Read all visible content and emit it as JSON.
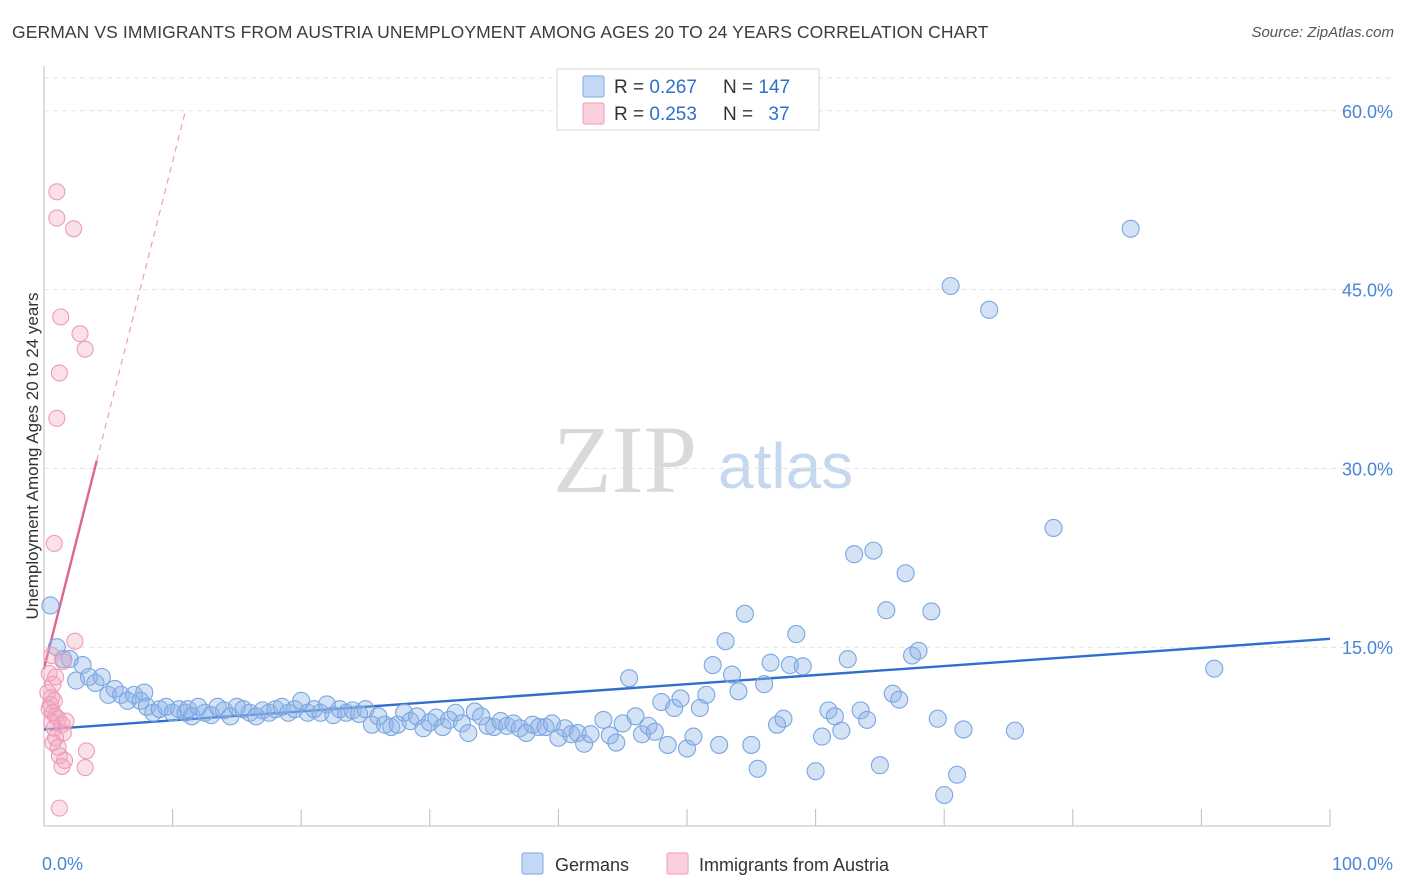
{
  "title": "GERMAN VS IMMIGRANTS FROM AUSTRIA UNEMPLOYMENT AMONG AGES 20 TO 24 YEARS CORRELATION CHART",
  "source": "Source: ZipAtlas.com",
  "watermark": {
    "zip": "ZIP",
    "atlas": "atlas"
  },
  "legend": {
    "rows": [
      {
        "r_label": "R = ",
        "r_value": "0.267",
        "n_label": "N = ",
        "n_value": "147",
        "color": "#8fb4e8"
      },
      {
        "r_label": "R = ",
        "r_value": "0.253",
        "n_label": "N = ",
        "n_value": "37",
        "color": "#f2a9bf"
      }
    ]
  },
  "bottom_legend": [
    {
      "label": "Germans",
      "color": "#8fb4e8"
    },
    {
      "label": "Immigrants from Austria",
      "color": "#f2a9bf"
    }
  ],
  "chart_data": {
    "type": "scatter",
    "title": "GERMAN VS IMMIGRANTS FROM AUSTRIA UNEMPLOYMENT AMONG AGES 20 TO 24 YEARS CORRELATION CHART",
    "xlabel": "",
    "ylabel": "Unemployment Among Ages 20 to 24 years",
    "xlim": [
      0,
      100
    ],
    "ylim": [
      0,
      63
    ],
    "x_tick_labels": [
      "0.0%",
      "100.0%"
    ],
    "y_ticks": [
      15,
      30,
      45,
      60
    ],
    "y_tick_labels": [
      "15.0%",
      "30.0%",
      "45.0%",
      "60.0%"
    ],
    "grid": "horizontal dashed",
    "legend_position": "top-center",
    "series": [
      {
        "name": "Germans",
        "color": "#5b93dc",
        "trend": {
          "x": [
            0,
            100
          ],
          "y": [
            8.1,
            15.7
          ]
        },
        "points": [
          [
            0.5,
            18.5
          ],
          [
            1,
            15
          ],
          [
            1.5,
            14
          ],
          [
            2,
            14
          ],
          [
            2.5,
            12.2
          ],
          [
            3,
            13.5
          ],
          [
            3.5,
            12.5
          ],
          [
            4,
            12
          ],
          [
            4.5,
            12.5
          ],
          [
            5,
            11
          ],
          [
            5.5,
            11.5
          ],
          [
            6,
            11
          ],
          [
            6.5,
            10.5
          ],
          [
            7,
            11
          ],
          [
            7.5,
            10.5
          ],
          [
            7.8,
            11.2
          ],
          [
            8,
            10
          ],
          [
            8.5,
            9.5
          ],
          [
            9,
            9.8
          ],
          [
            9.5,
            10
          ],
          [
            10,
            9.5
          ],
          [
            10.5,
            9.8
          ],
          [
            11,
            9.5
          ],
          [
            11.5,
            9.2
          ],
          [
            11.2,
            9.8
          ],
          [
            12,
            10
          ],
          [
            12.5,
            9.5
          ],
          [
            13,
            9.3
          ],
          [
            13.5,
            10
          ],
          [
            14,
            9.7
          ],
          [
            14.5,
            9.2
          ],
          [
            15,
            10
          ],
          [
            15.5,
            9.8
          ],
          [
            16,
            9.5
          ],
          [
            16.5,
            9.2
          ],
          [
            17,
            9.7
          ],
          [
            17.5,
            9.5
          ],
          [
            18,
            9.8
          ],
          [
            18.5,
            10
          ],
          [
            19,
            9.5
          ],
          [
            19.5,
            9.8
          ],
          [
            20,
            10.5
          ],
          [
            20.5,
            9.5
          ],
          [
            21,
            9.8
          ],
          [
            21.5,
            9.5
          ],
          [
            22,
            10.2
          ],
          [
            22.5,
            9.3
          ],
          [
            23,
            9.8
          ],
          [
            23.5,
            9.5
          ],
          [
            24,
            9.7
          ],
          [
            24.5,
            9.4
          ],
          [
            25,
            9.8
          ],
          [
            25.5,
            8.5
          ],
          [
            26,
            9.2
          ],
          [
            26.5,
            8.5
          ],
          [
            27,
            8.3
          ],
          [
            27.5,
            8.5
          ],
          [
            28,
            9.5
          ],
          [
            28.5,
            8.8
          ],
          [
            29,
            9.2
          ],
          [
            29.5,
            8.2
          ],
          [
            30,
            8.7
          ],
          [
            30.5,
            9.1
          ],
          [
            31,
            8.3
          ],
          [
            31.5,
            8.9
          ],
          [
            32,
            9.5
          ],
          [
            32.5,
            8.6
          ],
          [
            33,
            7.8
          ],
          [
            33.5,
            9.6
          ],
          [
            34,
            9.2
          ],
          [
            34.5,
            8.4
          ],
          [
            35,
            8.3
          ],
          [
            35.5,
            8.8
          ],
          [
            36,
            8.4
          ],
          [
            36.5,
            8.6
          ],
          [
            37,
            8.2
          ],
          [
            37.5,
            7.8
          ],
          [
            38,
            8.5
          ],
          [
            38.5,
            8.3
          ],
          [
            39,
            8.3
          ],
          [
            39.5,
            8.6
          ],
          [
            40,
            7.4
          ],
          [
            40.5,
            8.2
          ],
          [
            41,
            7.7
          ],
          [
            41.5,
            7.8
          ],
          [
            42,
            6.9
          ],
          [
            42.5,
            7.7
          ],
          [
            43.5,
            8.9
          ],
          [
            44,
            7.6
          ],
          [
            44.5,
            7.0
          ],
          [
            45,
            8.6
          ],
          [
            45.5,
            12.4
          ],
          [
            46,
            9.2
          ],
          [
            46.5,
            7.7
          ],
          [
            47,
            8.4
          ],
          [
            47.5,
            7.9
          ],
          [
            48,
            10.4
          ],
          [
            48.5,
            6.8
          ],
          [
            49,
            9.9
          ],
          [
            49.5,
            10.7
          ],
          [
            50,
            6.5
          ],
          [
            50.5,
            7.5
          ],
          [
            51,
            9.9
          ],
          [
            51.5,
            11
          ],
          [
            52,
            13.5
          ],
          [
            52.5,
            6.8
          ],
          [
            53,
            15.5
          ],
          [
            53.5,
            12.7
          ],
          [
            54,
            11.3
          ],
          [
            54.5,
            17.8
          ],
          [
            55,
            6.8
          ],
          [
            55.5,
            4.8
          ],
          [
            56,
            11.9
          ],
          [
            56.5,
            13.7
          ],
          [
            57,
            8.5
          ],
          [
            57.5,
            9
          ],
          [
            58,
            13.5
          ],
          [
            58.5,
            16.1
          ],
          [
            59,
            13.4
          ],
          [
            60,
            4.6
          ],
          [
            60.5,
            7.5
          ],
          [
            61,
            9.7
          ],
          [
            61.5,
            9.2
          ],
          [
            62,
            8
          ],
          [
            62.5,
            14
          ],
          [
            63,
            22.8
          ],
          [
            63.5,
            9.7
          ],
          [
            64,
            8.9
          ],
          [
            64.5,
            23.1
          ],
          [
            65,
            5.1
          ],
          [
            65.5,
            18.1
          ],
          [
            66,
            11.1
          ],
          [
            66.5,
            10.6
          ],
          [
            67,
            21.2
          ],
          [
            67.5,
            14.3
          ],
          [
            68,
            14.7
          ],
          [
            69,
            18
          ],
          [
            69.5,
            9
          ],
          [
            70,
            2.6
          ],
          [
            70.5,
            45.3
          ],
          [
            71,
            4.3
          ],
          [
            71.5,
            8.1
          ],
          [
            73.5,
            43.3
          ],
          [
            75.5,
            8
          ],
          [
            78.5,
            25
          ],
          [
            84.5,
            50.1
          ],
          [
            91,
            13.2
          ]
        ]
      },
      {
        "name": "Immigrants from Austria",
        "color": "#ee8fae",
        "trend": {
          "x": [
            0,
            11
          ],
          "y": [
            13.2,
            60
          ]
        },
        "points": [
          [
            1,
            53.2
          ],
          [
            1,
            51
          ],
          [
            2.3,
            50.1
          ],
          [
            1.3,
            42.7
          ],
          [
            2.8,
            41.3
          ],
          [
            3.2,
            40
          ],
          [
            1.2,
            38
          ],
          [
            1,
            34.2
          ],
          [
            0.8,
            23.7
          ],
          [
            2.4,
            15.5
          ],
          [
            0.6,
            14.3
          ],
          [
            1.5,
            13.8
          ],
          [
            0.4,
            12.8
          ],
          [
            0.7,
            11.9
          ],
          [
            0.9,
            12.5
          ],
          [
            0.3,
            11.2
          ],
          [
            0.6,
            10.8
          ],
          [
            0.8,
            10.5
          ],
          [
            0.5,
            10.2
          ],
          [
            0.4,
            9.8
          ],
          [
            0.7,
            9.5
          ],
          [
            0.9,
            9.2
          ],
          [
            1.1,
            9
          ],
          [
            0.6,
            8.7
          ],
          [
            1.4,
            8.5
          ],
          [
            1.7,
            8.8
          ],
          [
            0.8,
            8.2
          ],
          [
            1.5,
            7.8
          ],
          [
            0.9,
            7.4
          ],
          [
            0.7,
            7
          ],
          [
            1.1,
            6.6
          ],
          [
            1.2,
            5.9
          ],
          [
            1.6,
            5.5
          ],
          [
            3.3,
            6.3
          ],
          [
            1.4,
            5
          ],
          [
            3.2,
            4.9
          ],
          [
            1.2,
            1.5
          ]
        ]
      }
    ]
  }
}
